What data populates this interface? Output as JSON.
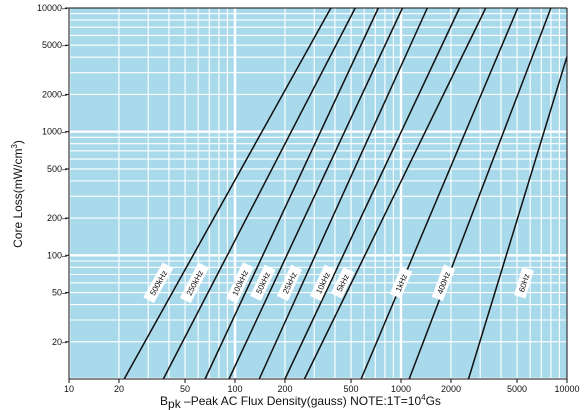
{
  "chart_data": {
    "type": "line",
    "scale": {
      "x": "log",
      "y": "log"
    },
    "xlim": [
      10,
      10000
    ],
    "ylim": [
      10,
      10000
    ],
    "grid": true,
    "colors": {
      "plot_bg": "#a9daec",
      "grid": "#ffffff",
      "line": "#111111"
    },
    "x_ticks": [
      {
        "value": 10,
        "label": "10"
      },
      {
        "value": 20,
        "label": "20"
      },
      {
        "value": 50,
        "label": "50"
      },
      {
        "value": 100,
        "label": "100"
      },
      {
        "value": 200,
        "label": "200"
      },
      {
        "value": 500,
        "label": "500"
      },
      {
        "value": 1000,
        "label": "1000"
      },
      {
        "value": 2000,
        "label": "2000"
      },
      {
        "value": 5000,
        "label": "5000"
      },
      {
        "value": 10000,
        "label": "10000"
      }
    ],
    "y_ticks": [
      {
        "value": 20,
        "label": "20"
      },
      {
        "value": 50,
        "label": "50"
      },
      {
        "value": 100,
        "label": "100"
      },
      {
        "value": 200,
        "label": "200"
      },
      {
        "value": 500,
        "label": "500"
      },
      {
        "value": 1000,
        "label": "1000"
      },
      {
        "value": 2000,
        "label": "2000"
      },
      {
        "value": 5000,
        "label": "5000"
      },
      {
        "value": 10000,
        "label": "10000"
      }
    ],
    "ylabel": {
      "main": "Core Loss(mW/cm",
      "sup": "3",
      "end": ")"
    },
    "xlabel": {
      "b": "B",
      "sub": "pk",
      "rest": " –Peak AC Flux Density(gauss)  NOTE:1T=10",
      "sup": "4",
      "end": "Gs"
    },
    "series": [
      {
        "name": "500kHz",
        "points": [
          [
            21.5,
            10
          ],
          [
            378,
            10000
          ]
        ],
        "label_at": [
          34.5,
          60
        ]
      },
      {
        "name": "250kHz",
        "points": [
          [
            37,
            10
          ],
          [
            530,
            10000
          ]
        ],
        "label_at": [
          57,
          60
        ]
      },
      {
        "name": "100kHz",
        "points": [
          [
            66,
            10
          ],
          [
            730,
            10000
          ]
        ],
        "label_at": [
          107,
          60
        ]
      },
      {
        "name": "50kHz",
        "points": [
          [
            92,
            10
          ],
          [
            1020,
            10000
          ]
        ],
        "label_at": [
          147,
          60
        ]
      },
      {
        "name": "25kHz",
        "points": [
          [
            140,
            10
          ],
          [
            1440,
            10000
          ]
        ],
        "label_at": [
          213,
          60
        ]
      },
      {
        "name": "10kHz",
        "points": [
          [
            200,
            10
          ],
          [
            2250,
            10000
          ]
        ],
        "label_at": [
          338,
          60
        ]
      },
      {
        "name": "5kHz",
        "points": [
          [
            262,
            10
          ],
          [
            3240,
            10000
          ]
        ],
        "label_at": [
          445,
          60
        ]
      },
      {
        "name": "1kHz",
        "points": [
          [
            575,
            10
          ],
          [
            5050,
            10000
          ]
        ],
        "label_at": [
          1000,
          60
        ]
      },
      {
        "name": "400Hz",
        "points": [
          [
            1120,
            10
          ],
          [
            8000,
            10000
          ]
        ],
        "label_at": [
          1800,
          60
        ]
      },
      {
        "name": "60Hz",
        "points": [
          [
            2550,
            10
          ],
          [
            10000,
            4050
          ]
        ],
        "label_at": [
          5500,
          60
        ]
      }
    ]
  }
}
